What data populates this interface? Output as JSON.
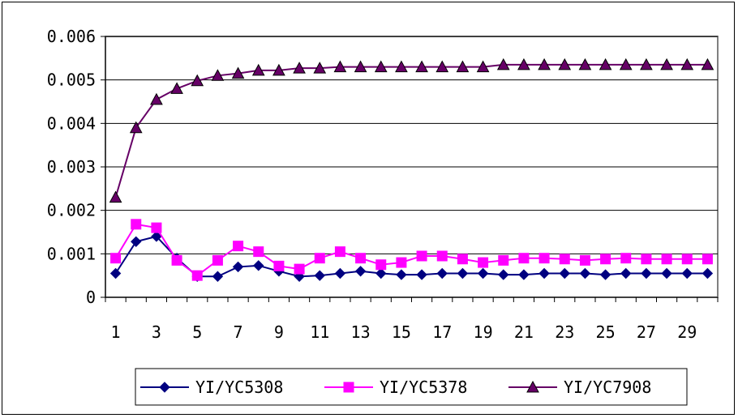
{
  "chart_data": {
    "type": "line",
    "title": "",
    "xlabel": "",
    "ylabel": "",
    "x": [
      1,
      2,
      3,
      4,
      5,
      6,
      7,
      8,
      9,
      10,
      11,
      12,
      13,
      14,
      15,
      16,
      17,
      18,
      19,
      20,
      21,
      22,
      23,
      24,
      25,
      26,
      27,
      28,
      29,
      30
    ],
    "x_tick_labels": [
      "1",
      "3",
      "5",
      "7",
      "9",
      "11",
      "13",
      "15",
      "17",
      "19",
      "21",
      "23",
      "25",
      "27",
      "29"
    ],
    "y_tick_labels": [
      "0",
      "0.001",
      "0.002",
      "0.003",
      "0.004",
      "0.005",
      "0.006"
    ],
    "ylim": [
      0,
      0.006
    ],
    "grid": true,
    "legend_position": "bottom",
    "series": [
      {
        "name": "YI/YC5308",
        "color": "#000080",
        "marker": "diamond",
        "values": [
          0.00055,
          0.00128,
          0.0014,
          0.0009,
          0.00048,
          0.00048,
          0.0007,
          0.00073,
          0.0006,
          0.00048,
          0.0005,
          0.00055,
          0.0006,
          0.00055,
          0.00052,
          0.00052,
          0.00055,
          0.00055,
          0.00055,
          0.00052,
          0.00052,
          0.00055,
          0.00055,
          0.00055,
          0.00052,
          0.00055,
          0.00055,
          0.00055,
          0.00055,
          0.00055
        ]
      },
      {
        "name": "YI/YC5378",
        "color": "#FF00FF",
        "marker": "square",
        "values": [
          0.0009,
          0.00168,
          0.0016,
          0.00085,
          0.0005,
          0.00085,
          0.00118,
          0.00105,
          0.00072,
          0.00065,
          0.0009,
          0.00105,
          0.0009,
          0.00075,
          0.0008,
          0.00095,
          0.00095,
          0.00088,
          0.0008,
          0.00085,
          0.0009,
          0.0009,
          0.00088,
          0.00085,
          0.00088,
          0.0009,
          0.00088,
          0.00088,
          0.00088,
          0.00088
        ]
      },
      {
        "name": "YI/YC7908",
        "color": "#660066",
        "marker": "triangle",
        "values": [
          0.0023,
          0.0039,
          0.00455,
          0.0048,
          0.00498,
          0.0051,
          0.00515,
          0.00522,
          0.00522,
          0.00527,
          0.00527,
          0.0053,
          0.0053,
          0.0053,
          0.0053,
          0.0053,
          0.0053,
          0.0053,
          0.0053,
          0.00535,
          0.00535,
          0.00535,
          0.00535,
          0.00535,
          0.00535,
          0.00535,
          0.00535,
          0.00535,
          0.00535,
          0.00535
        ]
      }
    ]
  }
}
